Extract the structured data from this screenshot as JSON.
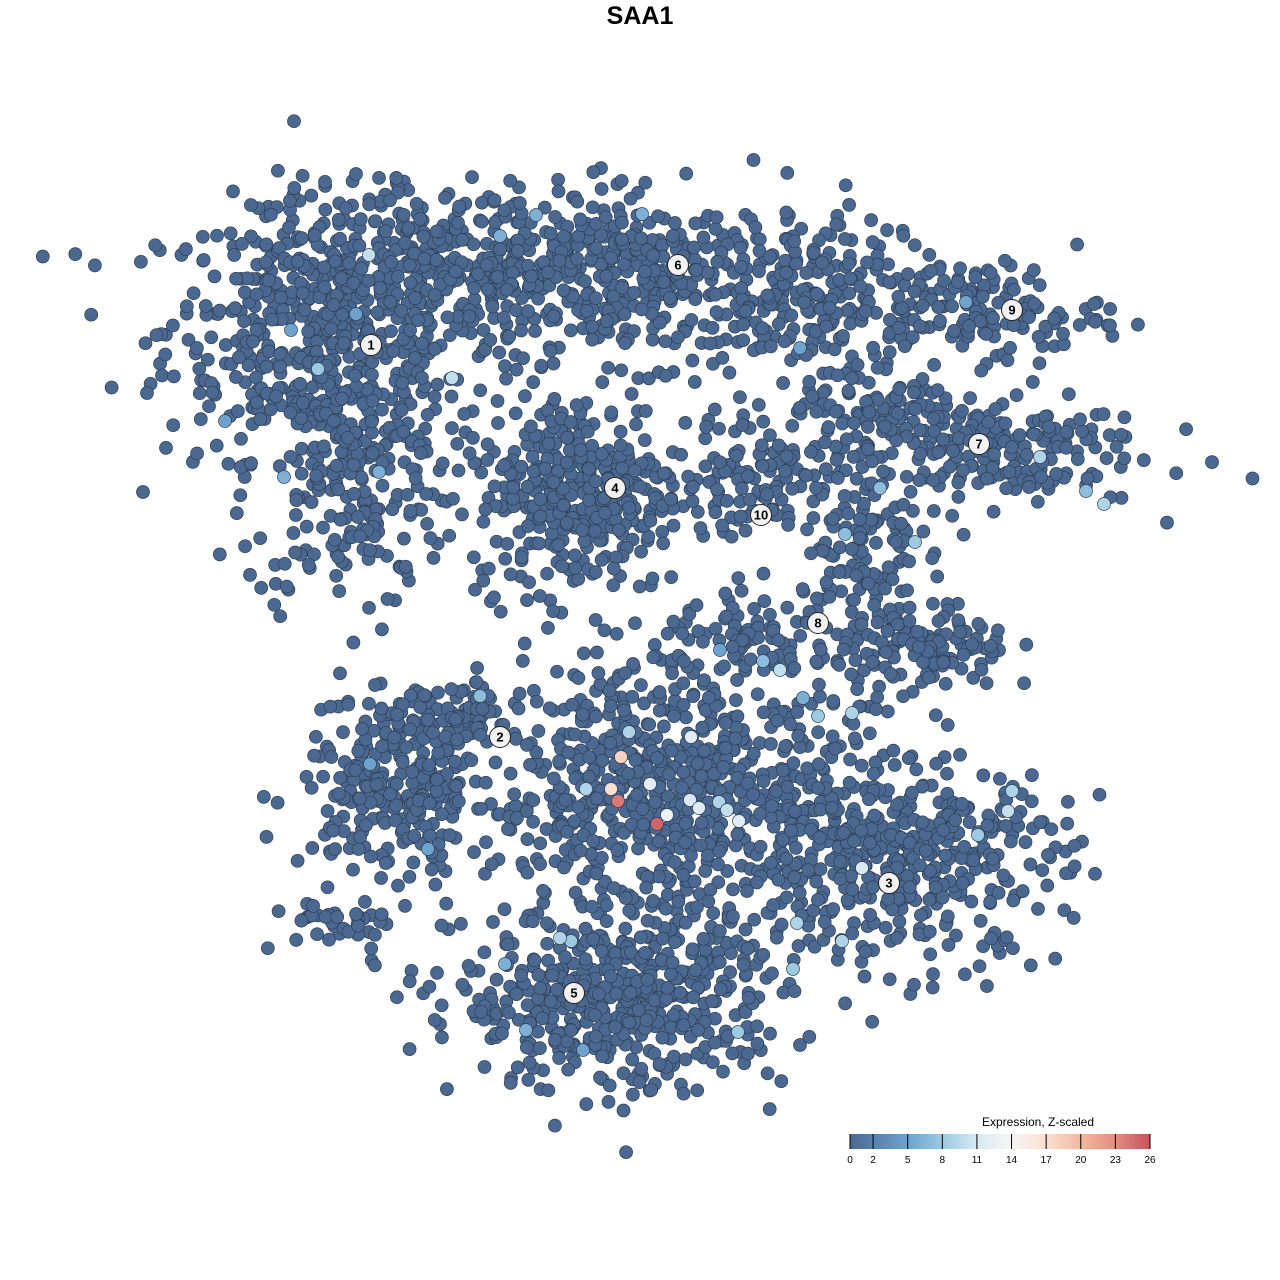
{
  "chart_data": {
    "type": "scatter",
    "title": "SAA1",
    "xlabel": "",
    "ylabel": "",
    "axes_visible": false,
    "grid": false,
    "xlim": [
      0,
      93
    ],
    "ylim": [
      0,
      92
    ],
    "point_color_base": "#4b6890",
    "point_outline": "#2d3f57",
    "legend": {
      "title": "Expression, Z-scaled",
      "placement": "bottom-right",
      "range": [
        0,
        26
      ],
      "ticks": [
        0,
        2,
        5,
        8,
        11,
        14,
        17,
        20,
        23,
        26
      ],
      "tick_labels": [
        "0",
        "2",
        "5",
        "8",
        "11",
        "14",
        "17",
        "20",
        "23",
        "26"
      ],
      "colors": [
        {
          "v": 0,
          "c": "#4a6894"
        },
        {
          "v": 5,
          "c": "#6ea3cd"
        },
        {
          "v": 8,
          "c": "#9ccae1"
        },
        {
          "v": 11,
          "c": "#d8e9f2"
        },
        {
          "v": 14,
          "c": "#f6f6f6"
        },
        {
          "v": 17,
          "c": "#fbdfcf"
        },
        {
          "v": 20,
          "c": "#f3b8a0"
        },
        {
          "v": 23,
          "c": "#e38d80"
        },
        {
          "v": 26,
          "c": "#c6525f"
        }
      ]
    },
    "clusters": [
      {
        "label": "1",
        "x": 17.1,
        "y": 75.0
      },
      {
        "label": "2",
        "x": 30.0,
        "y": 35.8
      },
      {
        "label": "3",
        "x": 68.9,
        "y": 21.2
      },
      {
        "label": "4",
        "x": 41.5,
        "y": 60.7
      },
      {
        "label": "5",
        "x": 37.4,
        "y": 10.2
      },
      {
        "label": "6",
        "x": 47.8,
        "y": 83.0
      },
      {
        "label": "7",
        "x": 77.9,
        "y": 65.1
      },
      {
        "label": "8",
        "x": 61.8,
        "y": 47.2
      },
      {
        "label": "9",
        "x": 81.2,
        "y": 78.5
      },
      {
        "label": "10",
        "x": 56.1,
        "y": 58.0
      }
    ],
    "cell_groups": [
      {
        "x": 13.0,
        "y": 76.5,
        "sx": 11.0,
        "sy": 8.5,
        "n": 500
      },
      {
        "x": 15.0,
        "y": 62.5,
        "sx": 7.0,
        "sy": 9.5,
        "n": 260
      },
      {
        "x": 27.0,
        "y": 83.5,
        "sx": 14.0,
        "sy": 5.0,
        "n": 320
      },
      {
        "x": 45.0,
        "y": 81.5,
        "sx": 16.0,
        "sy": 5.5,
        "n": 420
      },
      {
        "x": 59.0,
        "y": 78.5,
        "sx": 5.5,
        "sy": 4.5,
        "n": 100
      },
      {
        "x": 38.0,
        "y": 60.5,
        "sx": 7.0,
        "sy": 6.8,
        "n": 380
      },
      {
        "x": 77.0,
        "y": 78.5,
        "sx": 9.0,
        "sy": 3.2,
        "n": 150
      },
      {
        "x": 78.0,
        "y": 64.5,
        "sx": 11.0,
        "sy": 3.8,
        "n": 210
      },
      {
        "x": 68.0,
        "y": 69.5,
        "sx": 5.0,
        "sy": 3.2,
        "n": 90
      },
      {
        "x": 56.0,
        "y": 62.5,
        "sx": 5.0,
        "sy": 4.5,
        "n": 110
      },
      {
        "x": 66.0,
        "y": 54.5,
        "sx": 4.0,
        "sy": 6.0,
        "n": 120
      },
      {
        "x": 72.0,
        "y": 44.5,
        "sx": 6.0,
        "sy": 3.2,
        "n": 130
      },
      {
        "x": 56.0,
        "y": 45.5,
        "sx": 7.0,
        "sy": 2.5,
        "n": 80
      },
      {
        "x": 20.0,
        "y": 30.5,
        "sx": 6.5,
        "sy": 5.5,
        "n": 260
      },
      {
        "x": 24.0,
        "y": 37.5,
        "sx": 6.0,
        "sy": 2.5,
        "n": 80
      },
      {
        "x": 48.0,
        "y": 30.5,
        "sx": 12.0,
        "sy": 9.0,
        "n": 720
      },
      {
        "x": 70.0,
        "y": 23.5,
        "sx": 11.0,
        "sy": 6.5,
        "n": 420
      },
      {
        "x": 42.0,
        "y": 9.5,
        "sx": 11.0,
        "sy": 6.0,
        "n": 520
      },
      {
        "x": 14.0,
        "y": 17.0,
        "sx": 4.5,
        "sy": 1.8,
        "n": 40
      }
    ],
    "expressing_cells": [
      {
        "x": 42.1,
        "y": 33.8,
        "v": 18
      },
      {
        "x": 41.1,
        "y": 30.6,
        "v": 17
      },
      {
        "x": 41.8,
        "y": 29.4,
        "v": 24
      },
      {
        "x": 45.7,
        "y": 27.1,
        "v": 25
      },
      {
        "x": 49.1,
        "y": 35.8,
        "v": 12
      },
      {
        "x": 46.7,
        "y": 28.0,
        "v": 13
      },
      {
        "x": 45.0,
        "y": 31.1,
        "v": 12
      },
      {
        "x": 53.9,
        "y": 27.4,
        "v": 12
      },
      {
        "x": 49.9,
        "y": 28.7,
        "v": 12
      },
      {
        "x": 49.0,
        "y": 29.5,
        "v": 11
      },
      {
        "x": 42.9,
        "y": 36.3,
        "v": 9
      },
      {
        "x": 16.9,
        "y": 84.0,
        "v": 10
      },
      {
        "x": 25.2,
        "y": 71.7,
        "v": 10
      },
      {
        "x": 11.8,
        "y": 72.6,
        "v": 8
      },
      {
        "x": 33.6,
        "y": 88.0,
        "v": 6
      },
      {
        "x": 44.2,
        "y": 88.1,
        "v": 6
      },
      {
        "x": 30.0,
        "y": 85.9,
        "v": 6
      },
      {
        "x": 15.6,
        "y": 78.1,
        "v": 5
      },
      {
        "x": 9.1,
        "y": 76.5,
        "v": 5
      },
      {
        "x": 71.5,
        "y": 55.3,
        "v": 8
      },
      {
        "x": 64.5,
        "y": 56.1,
        "v": 7
      },
      {
        "x": 68.0,
        "y": 60.7,
        "v": 7
      },
      {
        "x": 90.4,
        "y": 59.1,
        "v": 9
      },
      {
        "x": 84.0,
        "y": 63.8,
        "v": 9
      },
      {
        "x": 88.6,
        "y": 60.4,
        "v": 7
      },
      {
        "x": 76.6,
        "y": 79.3,
        "v": 5
      },
      {
        "x": 60.0,
        "y": 74.7,
        "v": 5
      },
      {
        "x": 58.0,
        "y": 42.5,
        "v": 10
      },
      {
        "x": 65.2,
        "y": 38.2,
        "v": 9
      },
      {
        "x": 61.8,
        "y": 37.9,
        "v": 8
      },
      {
        "x": 60.3,
        "y": 39.7,
        "v": 6
      },
      {
        "x": 66.2,
        "y": 22.7,
        "v": 11
      },
      {
        "x": 81.2,
        "y": 30.4,
        "v": 9
      },
      {
        "x": 80.8,
        "y": 28.4,
        "v": 10
      },
      {
        "x": 77.8,
        "y": 26.0,
        "v": 8
      },
      {
        "x": 64.2,
        "y": 15.4,
        "v": 9
      },
      {
        "x": 59.3,
        "y": 12.6,
        "v": 8
      },
      {
        "x": 59.7,
        "y": 17.2,
        "v": 9
      },
      {
        "x": 53.8,
        "y": 6.3,
        "v": 8
      },
      {
        "x": 36.0,
        "y": 15.7,
        "v": 9
      },
      {
        "x": 37.1,
        "y": 15.4,
        "v": 8
      },
      {
        "x": 30.5,
        "y": 13.1,
        "v": 6
      },
      {
        "x": 32.6,
        "y": 6.5,
        "v": 6
      },
      {
        "x": 28.0,
        "y": 39.9,
        "v": 7
      },
      {
        "x": 17.0,
        "y": 33.1,
        "v": 5
      },
      {
        "x": 22.8,
        "y": 24.6,
        "v": 5
      },
      {
        "x": 38.3,
        "y": 4.5,
        "v": 5
      },
      {
        "x": 2.5,
        "y": 67.4,
        "v": 5
      },
      {
        "x": 8.4,
        "y": 61.8,
        "v": 6
      },
      {
        "x": 17.9,
        "y": 62.3,
        "v": 6
      },
      {
        "x": 38.6,
        "y": 30.6,
        "v": 9
      },
      {
        "x": 52.7,
        "y": 28.5,
        "v": 10
      },
      {
        "x": 51.9,
        "y": 29.3,
        "v": 9
      },
      {
        "x": 56.3,
        "y": 43.4,
        "v": 7
      },
      {
        "x": 52.0,
        "y": 44.5,
        "v": 5
      }
    ]
  }
}
